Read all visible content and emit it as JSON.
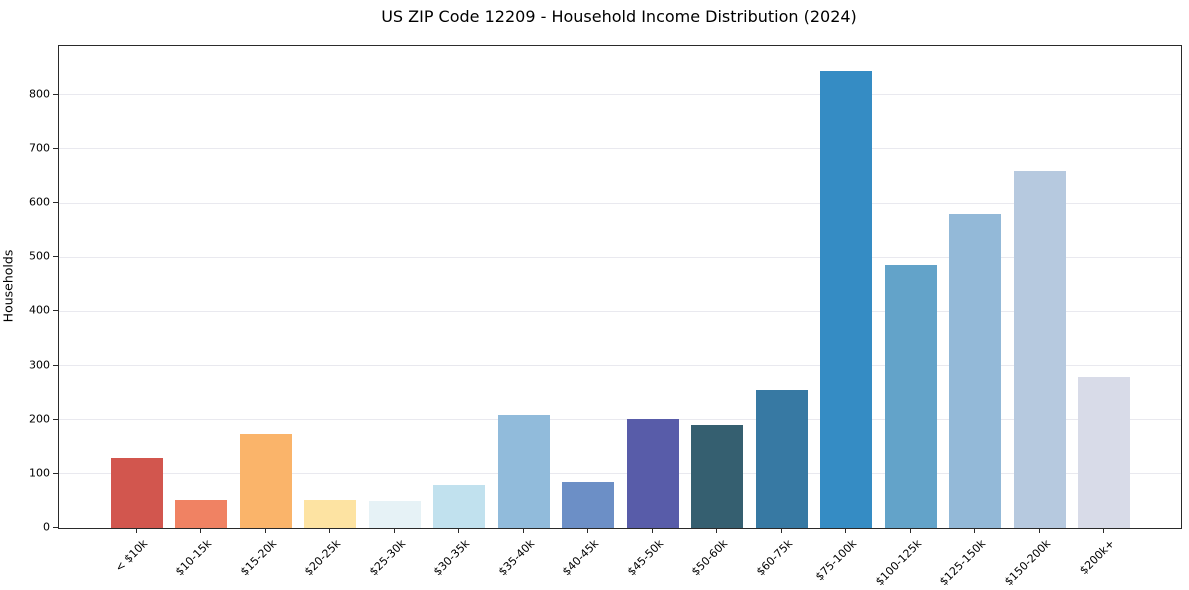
{
  "chart_data": {
    "type": "bar",
    "title": "US ZIP Code 12209 - Household Income Distribution (2024)",
    "xlabel": "",
    "ylabel": "Households",
    "categories": [
      "< $10k",
      "$10-15k",
      "$15-20k",
      "$20-25k",
      "$25-30k",
      "$30-35k",
      "$35-40k",
      "$40-45k",
      "$45-50k",
      "$50-60k",
      "$60-75k",
      "$75-100k",
      "$100-125k",
      "$125-150k",
      "$150-200k",
      "$200k+"
    ],
    "values": [
      130,
      52,
      174,
      52,
      50,
      80,
      209,
      85,
      201,
      190,
      254,
      844,
      485,
      580,
      659,
      278
    ],
    "bar_colors": [
      "#d2564e",
      "#f08263",
      "#fab46a",
      "#fde3a2",
      "#e6f2f6",
      "#c1e1ee",
      "#91bbdb",
      "#6c8fc6",
      "#585ca9",
      "#355f70",
      "#3779a3",
      "#358cc4",
      "#63a3c9",
      "#93b9d8",
      "#b6c9df",
      "#d8dbe8"
    ],
    "yticks": [
      0,
      100,
      200,
      300,
      400,
      500,
      600,
      700,
      800
    ],
    "ylim": [
      0,
      890
    ],
    "grid": "horizontal-only",
    "legend": "none",
    "x_tick_rotation_deg": 45
  },
  "colors": {
    "background": "#ffffff",
    "spine": "#2a2a2a",
    "gridline": "#e9e9ef",
    "text": "#000000"
  }
}
